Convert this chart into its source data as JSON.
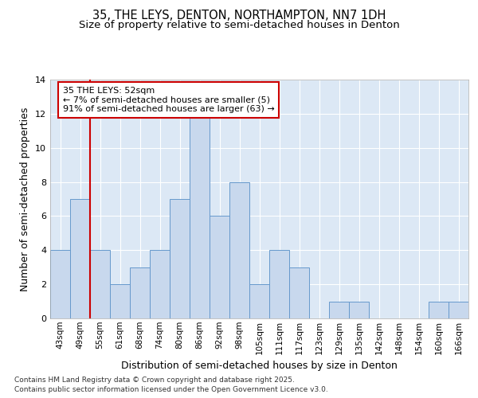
{
  "title_line1": "35, THE LEYS, DENTON, NORTHAMPTON, NN7 1DH",
  "title_line2": "Size of property relative to semi-detached houses in Denton",
  "xlabel": "Distribution of semi-detached houses by size in Denton",
  "ylabel": "Number of semi-detached properties",
  "categories": [
    "43sqm",
    "49sqm",
    "55sqm",
    "61sqm",
    "68sqm",
    "74sqm",
    "80sqm",
    "86sqm",
    "92sqm",
    "98sqm",
    "105sqm",
    "111sqm",
    "117sqm",
    "123sqm",
    "129sqm",
    "135sqm",
    "142sqm",
    "148sqm",
    "154sqm",
    "160sqm",
    "166sqm"
  ],
  "values": [
    4,
    7,
    4,
    2,
    3,
    4,
    7,
    12,
    6,
    8,
    2,
    4,
    3,
    0,
    1,
    1,
    0,
    0,
    0,
    1,
    1
  ],
  "bar_color": "#c8d8ed",
  "bar_edge_color": "#6699cc",
  "red_line_index": 1.5,
  "annotation_title": "35 THE LEYS: 52sqm",
  "annotation_line1": "← 7% of semi-detached houses are smaller (5)",
  "annotation_line2": "91% of semi-detached houses are larger (63) →",
  "annotation_box_color": "#ffffff",
  "annotation_box_edge": "#cc0000",
  "red_line_color": "#cc0000",
  "ylim": [
    0,
    14
  ],
  "yticks": [
    0,
    2,
    4,
    6,
    8,
    10,
    12,
    14
  ],
  "fig_background": "#ffffff",
  "plot_background": "#dce8f5",
  "grid_color": "#ffffff",
  "footer_line1": "Contains HM Land Registry data © Crown copyright and database right 2025.",
  "footer_line2": "Contains public sector information licensed under the Open Government Licence v3.0.",
  "title_fontsize": 10.5,
  "subtitle_fontsize": 9.5,
  "axis_label_fontsize": 9,
  "tick_fontsize": 7.5,
  "footer_fontsize": 6.5
}
